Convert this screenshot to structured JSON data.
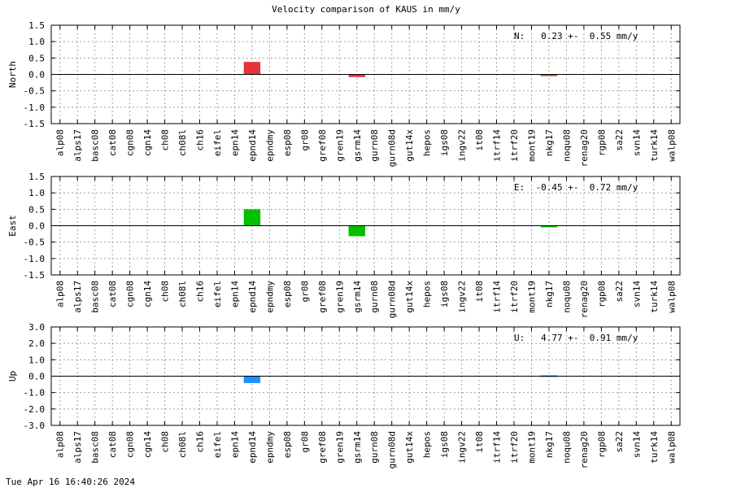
{
  "title": "Velocity comparison of KAUS in mm/y",
  "timestamp": "Tue Apr 16 16:40:26 2024",
  "chart_data": [
    {
      "type": "bar",
      "ylabel": "North",
      "annotation": "N:   0.23 +-  0.55 mm/y",
      "color": "#e63232",
      "ylim": [
        -1.5,
        1.5
      ],
      "yticks": [
        "1.5",
        "1.0",
        "0.5",
        "0.0",
        "-0.5",
        "-1.0",
        "-1.5"
      ],
      "grid": true,
      "categories": [
        "alp08",
        "alps17",
        "basc08",
        "cat08",
        "cgn08",
        "cgn14",
        "ch08",
        "ch08l",
        "ch16",
        "eifel",
        "epn14",
        "epnd14",
        "epndmy",
        "esp08",
        "gr08",
        "gref08",
        "gren19",
        "gsrm14",
        "gurn08",
        "gurn08d",
        "gut14x",
        "hepos",
        "igs08",
        "ingv22",
        "it08",
        "itrf14",
        "itrf20",
        "mont19",
        "nkg17",
        "noqu08",
        "renag20",
        "rgp08",
        "sa22",
        "svn14",
        "turk14",
        "walp08"
      ],
      "values": [
        null,
        null,
        null,
        null,
        null,
        null,
        null,
        null,
        null,
        null,
        null,
        0.38,
        null,
        null,
        null,
        null,
        null,
        -0.08,
        null,
        null,
        null,
        null,
        null,
        null,
        null,
        null,
        null,
        null,
        -0.05,
        null,
        null,
        null,
        null,
        null,
        null,
        null
      ]
    },
    {
      "type": "bar",
      "ylabel": "East",
      "annotation": "E:  -0.45 +-  0.72 mm/y",
      "color": "#00c000",
      "ylim": [
        -1.5,
        1.5
      ],
      "yticks": [
        "1.5",
        "1.0",
        "0.5",
        "0.0",
        "-0.5",
        "-1.0",
        "-1.5"
      ],
      "grid": true,
      "categories": [
        "alp08",
        "alps17",
        "basc08",
        "cat08",
        "cgn08",
        "cgn14",
        "ch08",
        "ch08l",
        "ch16",
        "eifel",
        "epn14",
        "epnd14",
        "epndmy",
        "esp08",
        "gr08",
        "gref08",
        "gren19",
        "gsrm14",
        "gurn08",
        "gurn08d",
        "gut14x",
        "hepos",
        "igs08",
        "ingv22",
        "it08",
        "itrf14",
        "itrf20",
        "mont19",
        "nkg17",
        "noqu08",
        "renag20",
        "rgp08",
        "sa22",
        "svn14",
        "turk14",
        "walp08"
      ],
      "values": [
        null,
        null,
        null,
        null,
        null,
        null,
        null,
        null,
        null,
        null,
        null,
        0.5,
        null,
        null,
        null,
        null,
        null,
        -0.32,
        null,
        null,
        null,
        null,
        null,
        null,
        null,
        null,
        null,
        null,
        -0.05,
        null,
        null,
        null,
        null,
        null,
        null,
        null
      ]
    },
    {
      "type": "bar",
      "ylabel": "Up",
      "annotation": "U:   4.77 +-  0.91 mm/y",
      "color": "#1e90ff",
      "ylim": [
        -3.0,
        3.0
      ],
      "yticks": [
        "3.0",
        "2.0",
        "1.0",
        "0.0",
        "-1.0",
        "-2.0",
        "-3.0"
      ],
      "grid": true,
      "categories": [
        "alp08",
        "alps17",
        "basc08",
        "cat08",
        "cgn08",
        "cgn14",
        "ch08",
        "ch08l",
        "ch16",
        "eifel",
        "epn14",
        "epnd14",
        "epndmy",
        "esp08",
        "gr08",
        "gref08",
        "gren19",
        "gsrm14",
        "gurn08",
        "gurn08d",
        "gut14x",
        "hepos",
        "igs08",
        "ingv22",
        "it08",
        "itrf14",
        "itrf20",
        "mont19",
        "nkg17",
        "noqu08",
        "renag20",
        "rgp08",
        "sa22",
        "svn14",
        "turk14",
        "walp08"
      ],
      "values": [
        null,
        null,
        null,
        null,
        null,
        null,
        null,
        null,
        null,
        null,
        null,
        -0.42,
        null,
        null,
        null,
        null,
        null,
        null,
        null,
        null,
        null,
        null,
        null,
        null,
        null,
        null,
        null,
        null,
        0.05,
        null,
        null,
        null,
        null,
        null,
        null,
        null
      ]
    }
  ]
}
